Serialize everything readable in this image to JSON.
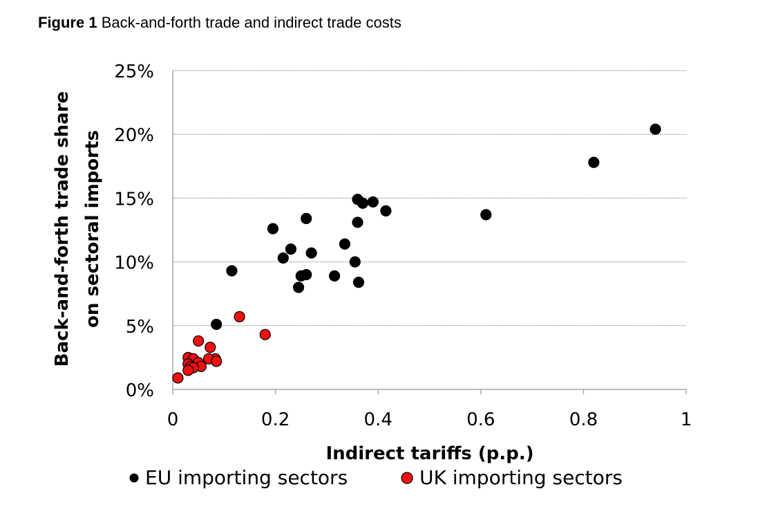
{
  "figure": {
    "label": "Figure 1",
    "caption": "Back-and-forth trade and indirect trade costs"
  },
  "colors": {
    "eu": "#000000",
    "uk": "#ee1111",
    "grid": "#9a9a9a",
    "axis": "#a6a6a6"
  },
  "chart_data": {
    "type": "scatter",
    "title": "",
    "xlabel": "Indirect tariffs (p.p.)",
    "ylabel_line1": "Back-and-forth trade share",
    "ylabel_line2": "on sectoral imports",
    "xlim": [
      0,
      1
    ],
    "ylim": [
      0,
      25
    ],
    "grid": "horizontal",
    "legend_position": "bottom",
    "x_ticks": [
      {
        "value": 0,
        "label": "0"
      },
      {
        "value": 0.2,
        "label": "0.2"
      },
      {
        "value": 0.4,
        "label": "0.4"
      },
      {
        "value": 0.6,
        "label": "0.6"
      },
      {
        "value": 0.8,
        "label": "0.8"
      },
      {
        "value": 1,
        "label": "1"
      }
    ],
    "y_ticks": [
      {
        "value": 0,
        "label": "0%"
      },
      {
        "value": 5,
        "label": "5%"
      },
      {
        "value": 10,
        "label": "10%"
      },
      {
        "value": 15,
        "label": "15%"
      },
      {
        "value": 20,
        "label": "20%"
      },
      {
        "value": 25,
        "label": "25%"
      }
    ],
    "series": [
      {
        "name": "EU importing sectors",
        "color": "#000000",
        "points": [
          [
            0.94,
            20.4
          ],
          [
            0.82,
            17.8
          ],
          [
            0.61,
            13.7
          ],
          [
            0.415,
            14.0
          ],
          [
            0.39,
            14.7
          ],
          [
            0.37,
            14.6
          ],
          [
            0.36,
            14.9
          ],
          [
            0.36,
            13.1
          ],
          [
            0.26,
            13.4
          ],
          [
            0.195,
            12.6
          ],
          [
            0.335,
            11.4
          ],
          [
            0.23,
            11.0
          ],
          [
            0.27,
            10.7
          ],
          [
            0.215,
            10.3
          ],
          [
            0.355,
            10.0
          ],
          [
            0.115,
            9.3
          ],
          [
            0.25,
            8.9
          ],
          [
            0.26,
            9.0
          ],
          [
            0.315,
            8.9
          ],
          [
            0.362,
            8.4
          ],
          [
            0.245,
            8.0
          ],
          [
            0.085,
            5.1
          ]
        ]
      },
      {
        "name": "UK importing sectors",
        "color": "#ee1111",
        "points": [
          [
            0.13,
            5.7
          ],
          [
            0.18,
            4.3
          ],
          [
            0.05,
            3.8
          ],
          [
            0.073,
            3.3
          ],
          [
            0.03,
            2.5
          ],
          [
            0.04,
            2.4
          ],
          [
            0.083,
            2.4
          ],
          [
            0.07,
            2.4
          ],
          [
            0.085,
            2.2
          ],
          [
            0.05,
            2.1
          ],
          [
            0.03,
            2.0
          ],
          [
            0.035,
            1.8
          ],
          [
            0.055,
            1.8
          ],
          [
            0.04,
            1.7
          ],
          [
            0.03,
            1.5
          ],
          [
            0.01,
            0.9
          ]
        ]
      }
    ]
  }
}
